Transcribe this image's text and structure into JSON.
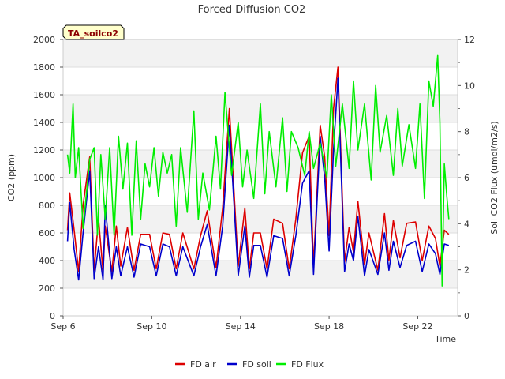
{
  "chart_data": {
    "type": "line",
    "title": "Forced Diffusion CO2",
    "xlabel": "Time",
    "ylabel_left": "CO2 (ppm)",
    "ylabel_right": "Soil CO2 Flux (umol/m2/s)",
    "tag": "TA_soilco2",
    "x_range_days": [
      6,
      23.8
    ],
    "x_ticks": [
      {
        "day": 6,
        "label": "Sep 6"
      },
      {
        "day": 10,
        "label": "Sep 10"
      },
      {
        "day": 14,
        "label": "Sep 14"
      },
      {
        "day": 18,
        "label": "Sep 18"
      },
      {
        "day": 22,
        "label": "Sep 22"
      }
    ],
    "ylim_left": [
      0,
      2000
    ],
    "yticks_left": [
      0,
      200,
      400,
      600,
      800,
      1000,
      1200,
      1400,
      1600,
      1800,
      2000
    ],
    "ylim_right": [
      0,
      12
    ],
    "yticks_right": [
      0,
      2,
      4,
      6,
      8,
      10,
      12
    ],
    "grid": true,
    "legend_position": "bottom-center",
    "series": [
      {
        "name": "FD air",
        "color": "#dd0000",
        "axis": "left",
        "x": [
          6.2,
          6.3,
          6.5,
          6.7,
          6.9,
          7.2,
          7.4,
          7.6,
          7.8,
          7.9,
          8.2,
          8.4,
          8.6,
          8.9,
          9.2,
          9.5,
          9.9,
          10.2,
          10.5,
          10.8,
          11.1,
          11.4,
          11.9,
          12.2,
          12.5,
          12.9,
          13.2,
          13.5,
          13.9,
          14.2,
          14.4,
          14.6,
          14.9,
          15.2,
          15.5,
          15.9,
          16.2,
          16.5,
          16.8,
          17.1,
          17.3,
          17.6,
          17.8,
          18.0,
          18.2,
          18.4,
          18.7,
          18.9,
          19.1,
          19.3,
          19.6,
          19.8,
          20.2,
          20.5,
          20.7,
          20.9,
          21.2,
          21.5,
          21.9,
          22.2,
          22.5,
          22.8,
          23.0,
          23.2,
          23.4
        ],
        "y": [
          620,
          890,
          620,
          320,
          800,
          1150,
          330,
          700,
          320,
          650,
          320,
          650,
          360,
          640,
          330,
          590,
          590,
          340,
          600,
          590,
          340,
          600,
          340,
          580,
          760,
          350,
          780,
          1500,
          360,
          780,
          340,
          600,
          600,
          340,
          700,
          670,
          340,
          700,
          1180,
          1300,
          360,
          1380,
          1150,
          580,
          1500,
          1800,
          390,
          640,
          460,
          830,
          370,
          600,
          330,
          740,
          400,
          690,
          420,
          670,
          680,
          400,
          650,
          560,
          360,
          620,
          590
        ]
      },
      {
        "name": "FD soil",
        "color": "#0000cc",
        "axis": "left",
        "x": [
          6.2,
          6.3,
          6.5,
          6.7,
          6.9,
          7.2,
          7.4,
          7.6,
          7.8,
          7.9,
          8.2,
          8.4,
          8.6,
          8.9,
          9.2,
          9.5,
          9.9,
          10.2,
          10.5,
          10.8,
          11.1,
          11.4,
          11.9,
          12.2,
          12.5,
          12.9,
          13.2,
          13.5,
          13.9,
          14.2,
          14.4,
          14.6,
          14.9,
          15.2,
          15.5,
          15.9,
          16.2,
          16.5,
          16.8,
          17.1,
          17.3,
          17.6,
          17.8,
          18.0,
          18.2,
          18.4,
          18.7,
          18.9,
          19.1,
          19.3,
          19.6,
          19.8,
          20.2,
          20.5,
          20.7,
          20.9,
          21.2,
          21.5,
          21.9,
          22.2,
          22.5,
          22.8,
          23.0,
          23.2,
          23.4
        ],
        "y": [
          540,
          820,
          480,
          260,
          600,
          1050,
          270,
          500,
          260,
          800,
          270,
          500,
          290,
          500,
          280,
          520,
          500,
          290,
          520,
          500,
          290,
          500,
          290,
          500,
          660,
          290,
          650,
          1380,
          290,
          650,
          280,
          510,
          510,
          280,
          580,
          560,
          290,
          580,
          960,
          1050,
          300,
          1300,
          1000,
          470,
          1200,
          1720,
          320,
          520,
          400,
          720,
          290,
          480,
          300,
          600,
          330,
          540,
          350,
          510,
          540,
          320,
          520,
          450,
          300,
          520,
          510
        ]
      },
      {
        "name": "FD Flux",
        "color": "#00ee00",
        "axis": "right",
        "x": [
          6.2,
          6.3,
          6.45,
          6.55,
          6.7,
          6.9,
          7.2,
          7.4,
          7.55,
          7.7,
          7.9,
          8.1,
          8.3,
          8.5,
          8.7,
          8.9,
          9.1,
          9.3,
          9.5,
          9.7,
          9.9,
          10.1,
          10.3,
          10.5,
          10.7,
          10.9,
          11.1,
          11.3,
          11.6,
          11.9,
          12.1,
          12.3,
          12.6,
          12.9,
          13.1,
          13.3,
          13.6,
          13.9,
          14.1,
          14.3,
          14.6,
          14.9,
          15.1,
          15.3,
          15.6,
          15.9,
          16.1,
          16.3,
          16.6,
          16.9,
          17.1,
          17.3,
          17.6,
          17.9,
          18.1,
          18.3,
          18.6,
          18.9,
          19.1,
          19.3,
          19.6,
          19.9,
          20.1,
          20.3,
          20.6,
          20.9,
          21.1,
          21.3,
          21.6,
          21.9,
          22.1,
          22.3,
          22.5,
          22.7,
          22.9,
          23.0,
          23.1,
          23.2,
          23.3,
          23.4
        ],
        "y": [
          7.0,
          6.2,
          9.2,
          6.0,
          7.3,
          3.8,
          6.8,
          7.3,
          3.5,
          7.0,
          4.2,
          7.3,
          3.5,
          7.8,
          5.5,
          7.5,
          3.5,
          7.6,
          4.2,
          6.6,
          5.6,
          7.3,
          5.2,
          7.1,
          6.2,
          7.0,
          3.9,
          7.3,
          4.5,
          8.9,
          4.2,
          6.2,
          4.6,
          7.8,
          5.5,
          9.7,
          6.1,
          8.4,
          5.6,
          7.2,
          5.1,
          9.2,
          5.3,
          8.0,
          5.6,
          8.6,
          5.4,
          8.0,
          7.3,
          6.1,
          8.0,
          6.4,
          7.5,
          6.0,
          9.6,
          6.5,
          9.2,
          6.4,
          10.2,
          7.2,
          9.2,
          5.9,
          10.0,
          7.1,
          8.7,
          6.1,
          9.0,
          6.5,
          8.3,
          6.4,
          9.2,
          5.1,
          10.2,
          9.1,
          11.3,
          8.4,
          1.3,
          6.6,
          5.3,
          4.2
        ]
      }
    ]
  }
}
